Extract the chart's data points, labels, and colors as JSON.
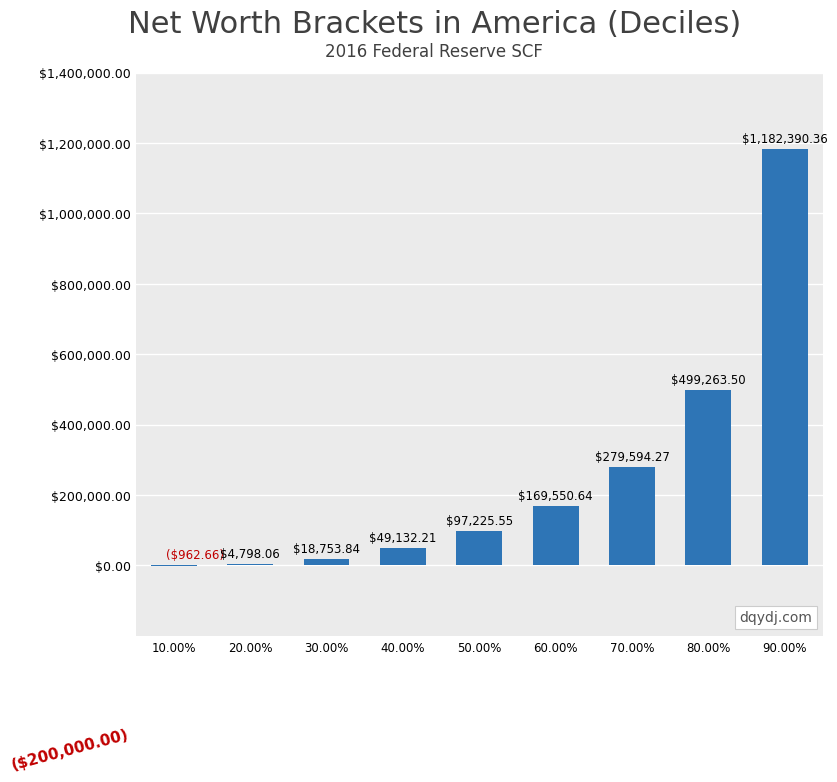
{
  "title": "Net Worth Brackets in America (Deciles)",
  "subtitle": "2016 Federal Reserve SCF",
  "categories": [
    "10.00%",
    "20.00%",
    "30.00%",
    "40.00%",
    "50.00%",
    "60.00%",
    "70.00%",
    "80.00%",
    "90.00%"
  ],
  "values": [
    -962.66,
    4798.06,
    18753.84,
    49132.21,
    97225.55,
    169550.64,
    279594.27,
    499263.5,
    1182390.36
  ],
  "bar_color": "#2E75B6",
  "negative_label_color": "#C00000",
  "annotation_fontsize": 8.5,
  "xlabel_fontsize": 8.5,
  "ytick_fontsize": 9,
  "ylim_min": -200000,
  "ylim_max": 1400000,
  "ytick_step": 200000,
  "plot_bg_color": "#EBEBEB",
  "fig_bg_color": "#FFFFFF",
  "grid_color": "#FFFFFF",
  "title_fontsize": 22,
  "subtitle_fontsize": 12,
  "watermark": "dqydj.com",
  "watermark_fontsize": 10,
  "neg_bottom_label": "($200,000.00)"
}
